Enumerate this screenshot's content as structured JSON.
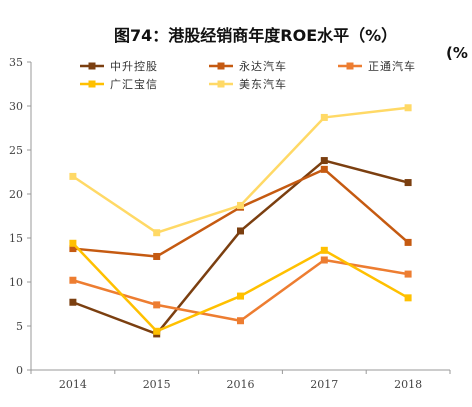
{
  "chart_data": {
    "type": "line",
    "title": "图74：港股经销商年度ROE水平（%）",
    "unit_label": "(%",
    "categories": [
      "2014",
      "2015",
      "2016",
      "2017",
      "2018"
    ],
    "ylim": [
      0,
      35
    ],
    "yticks": [
      0,
      5,
      10,
      15,
      20,
      25,
      30,
      35
    ],
    "grid": false,
    "legend_position": "top",
    "series": [
      {
        "name": "中升控股",
        "color": "#7B3F10",
        "values": [
          7.7,
          4.1,
          15.8,
          23.8,
          21.3
        ]
      },
      {
        "name": "永达汽车",
        "color": "#C55A11",
        "values": [
          13.8,
          12.9,
          18.5,
          22.8,
          14.5
        ]
      },
      {
        "name": "正通汽车",
        "color": "#ED7D31",
        "values": [
          10.2,
          7.4,
          5.6,
          12.5,
          10.9
        ]
      },
      {
        "name": "广汇宝信",
        "color": "#FFC000",
        "values": [
          14.4,
          4.4,
          8.4,
          13.6,
          8.2
        ]
      },
      {
        "name": "美东汽车",
        "color": "#FFD966",
        "values": [
          22.0,
          15.6,
          18.7,
          28.7,
          29.8
        ]
      }
    ]
  }
}
